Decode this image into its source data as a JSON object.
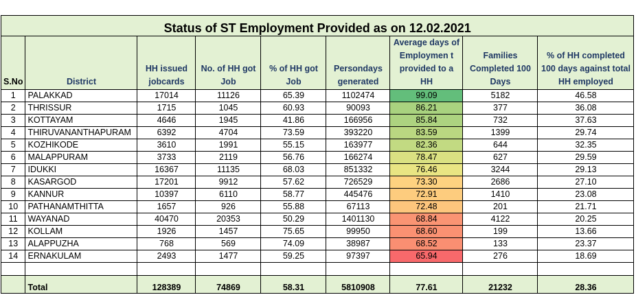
{
  "title": "Status of ST Employment Provided as on 12.02.2021",
  "headers": {
    "sno": "S.No",
    "district": "District",
    "hh_issued": "HH issued jobcards",
    "hh_got_job": "No. of HH got Job",
    "pct_got_job": "% of HH got Job",
    "persondays": "Persondays generated",
    "avg_days": "Average days of Employmen t provided to a HH",
    "families_100": "Families Completed 100 Days",
    "pct_100": "% of HH completed 100 days against total HH employed"
  },
  "rows": [
    {
      "sno": "1",
      "district": "PALAKKAD",
      "hh_issued": "17014",
      "hh_got_job": "11126",
      "pct_got_job": "65.39",
      "persondays": "1102474",
      "avg_days": "99.09",
      "avg_color": "#63be7b",
      "families_100": "5182",
      "pct_100": "46.58"
    },
    {
      "sno": "2",
      "district": "THRISSUR",
      "hh_issued": "1715",
      "hh_got_job": "1045",
      "pct_got_job": "60.93",
      "persondays": "90093",
      "avg_days": "86.21",
      "avg_color": "#a9d27f",
      "families_100": "377",
      "pct_100": "36.08"
    },
    {
      "sno": "3",
      "district": "KOTTAYAM",
      "hh_issued": "4646",
      "hh_got_job": "1945",
      "pct_got_job": "41.86",
      "persondays": "166956",
      "avg_days": "85.84",
      "avg_color": "#add380",
      "families_100": "732",
      "pct_100": "37.63"
    },
    {
      "sno": "4",
      "district": "THIRUVANANTHAPURAM",
      "hh_issued": "6392",
      "hh_got_job": "4704",
      "pct_got_job": "73.59",
      "persondays": "393220",
      "avg_days": "83.59",
      "avg_color": "#bad781",
      "families_100": "1399",
      "pct_100": "29.74"
    },
    {
      "sno": "5",
      "district": "KOZHIKODE",
      "hh_issued": "3610",
      "hh_got_job": "1991",
      "pct_got_job": "55.15",
      "persondays": "163977",
      "avg_days": "82.36",
      "avg_color": "#c2da82",
      "families_100": "644",
      "pct_100": "32.35"
    },
    {
      "sno": "6",
      "district": "MALAPPURAM",
      "hh_issued": "3733",
      "hh_got_job": "2119",
      "pct_got_job": "56.76",
      "persondays": "166274",
      "avg_days": "78.47",
      "avg_color": "#dae182",
      "families_100": "627",
      "pct_100": "29.59"
    },
    {
      "sno": "7",
      "district": "IDUKKI",
      "hh_issued": "16367",
      "hh_got_job": "11135",
      "pct_got_job": "68.03",
      "persondays": "851332",
      "avg_days": "76.46",
      "avg_color": "#e9e583",
      "families_100": "3244",
      "pct_100": "29.13"
    },
    {
      "sno": "8",
      "district": "KASARGOD",
      "hh_issued": "17201",
      "hh_got_job": "9912",
      "pct_got_job": "57.62",
      "persondays": "726529",
      "avg_days": "73.30",
      "avg_color": "#fed280",
      "families_100": "2686",
      "pct_100": "27.10"
    },
    {
      "sno": "9",
      "district": "KANNUR",
      "hh_issued": "10397",
      "hh_got_job": "6110",
      "pct_got_job": "58.77",
      "persondays": "445476",
      "avg_days": "72.91",
      "avg_color": "#fdcc7e",
      "families_100": "1410",
      "pct_100": "23.08"
    },
    {
      "sno": "10",
      "district": "PATHANAMTHITTA",
      "hh_issued": "1657",
      "hh_got_job": "926",
      "pct_got_job": "55.88",
      "persondays": "67113",
      "avg_days": "72.48",
      "avg_color": "#fdc67d",
      "families_100": "201",
      "pct_100": "21.71"
    },
    {
      "sno": "11",
      "district": "WAYANAD",
      "hh_issued": "40470",
      "hh_got_job": "20353",
      "pct_got_job": "50.29",
      "persondays": "1401130",
      "avg_days": "68.84",
      "avg_color": "#fa9473",
      "families_100": "4122",
      "pct_100": "20.25"
    },
    {
      "sno": "12",
      "district": "KOLLAM",
      "hh_issued": "1926",
      "hh_got_job": "1457",
      "pct_got_job": "75.65",
      "persondays": "99950",
      "avg_days": "68.60",
      "avg_color": "#fa9172",
      "families_100": "199",
      "pct_100": "13.66"
    },
    {
      "sno": "13",
      "district": "ALAPPUZHA",
      "hh_issued": "768",
      "hh_got_job": "569",
      "pct_got_job": "74.09",
      "persondays": "38987",
      "avg_days": "68.52",
      "avg_color": "#fa8f72",
      "families_100": "133",
      "pct_100": "23.37"
    },
    {
      "sno": "14",
      "district": "ERNAKULAM",
      "hh_issued": "2493",
      "hh_got_job": "1477",
      "pct_got_job": "59.25",
      "persondays": "97397",
      "avg_days": "65.94",
      "avg_color": "#f8696b",
      "families_100": "276",
      "pct_100": "18.69"
    }
  ],
  "total": {
    "label": "Total",
    "hh_issued": "128389",
    "hh_got_job": "74869",
    "pct_got_job": "58.31",
    "persondays": "5810908",
    "avg_days": "77.61",
    "families_100": "21232",
    "pct_100": "28.36"
  }
}
